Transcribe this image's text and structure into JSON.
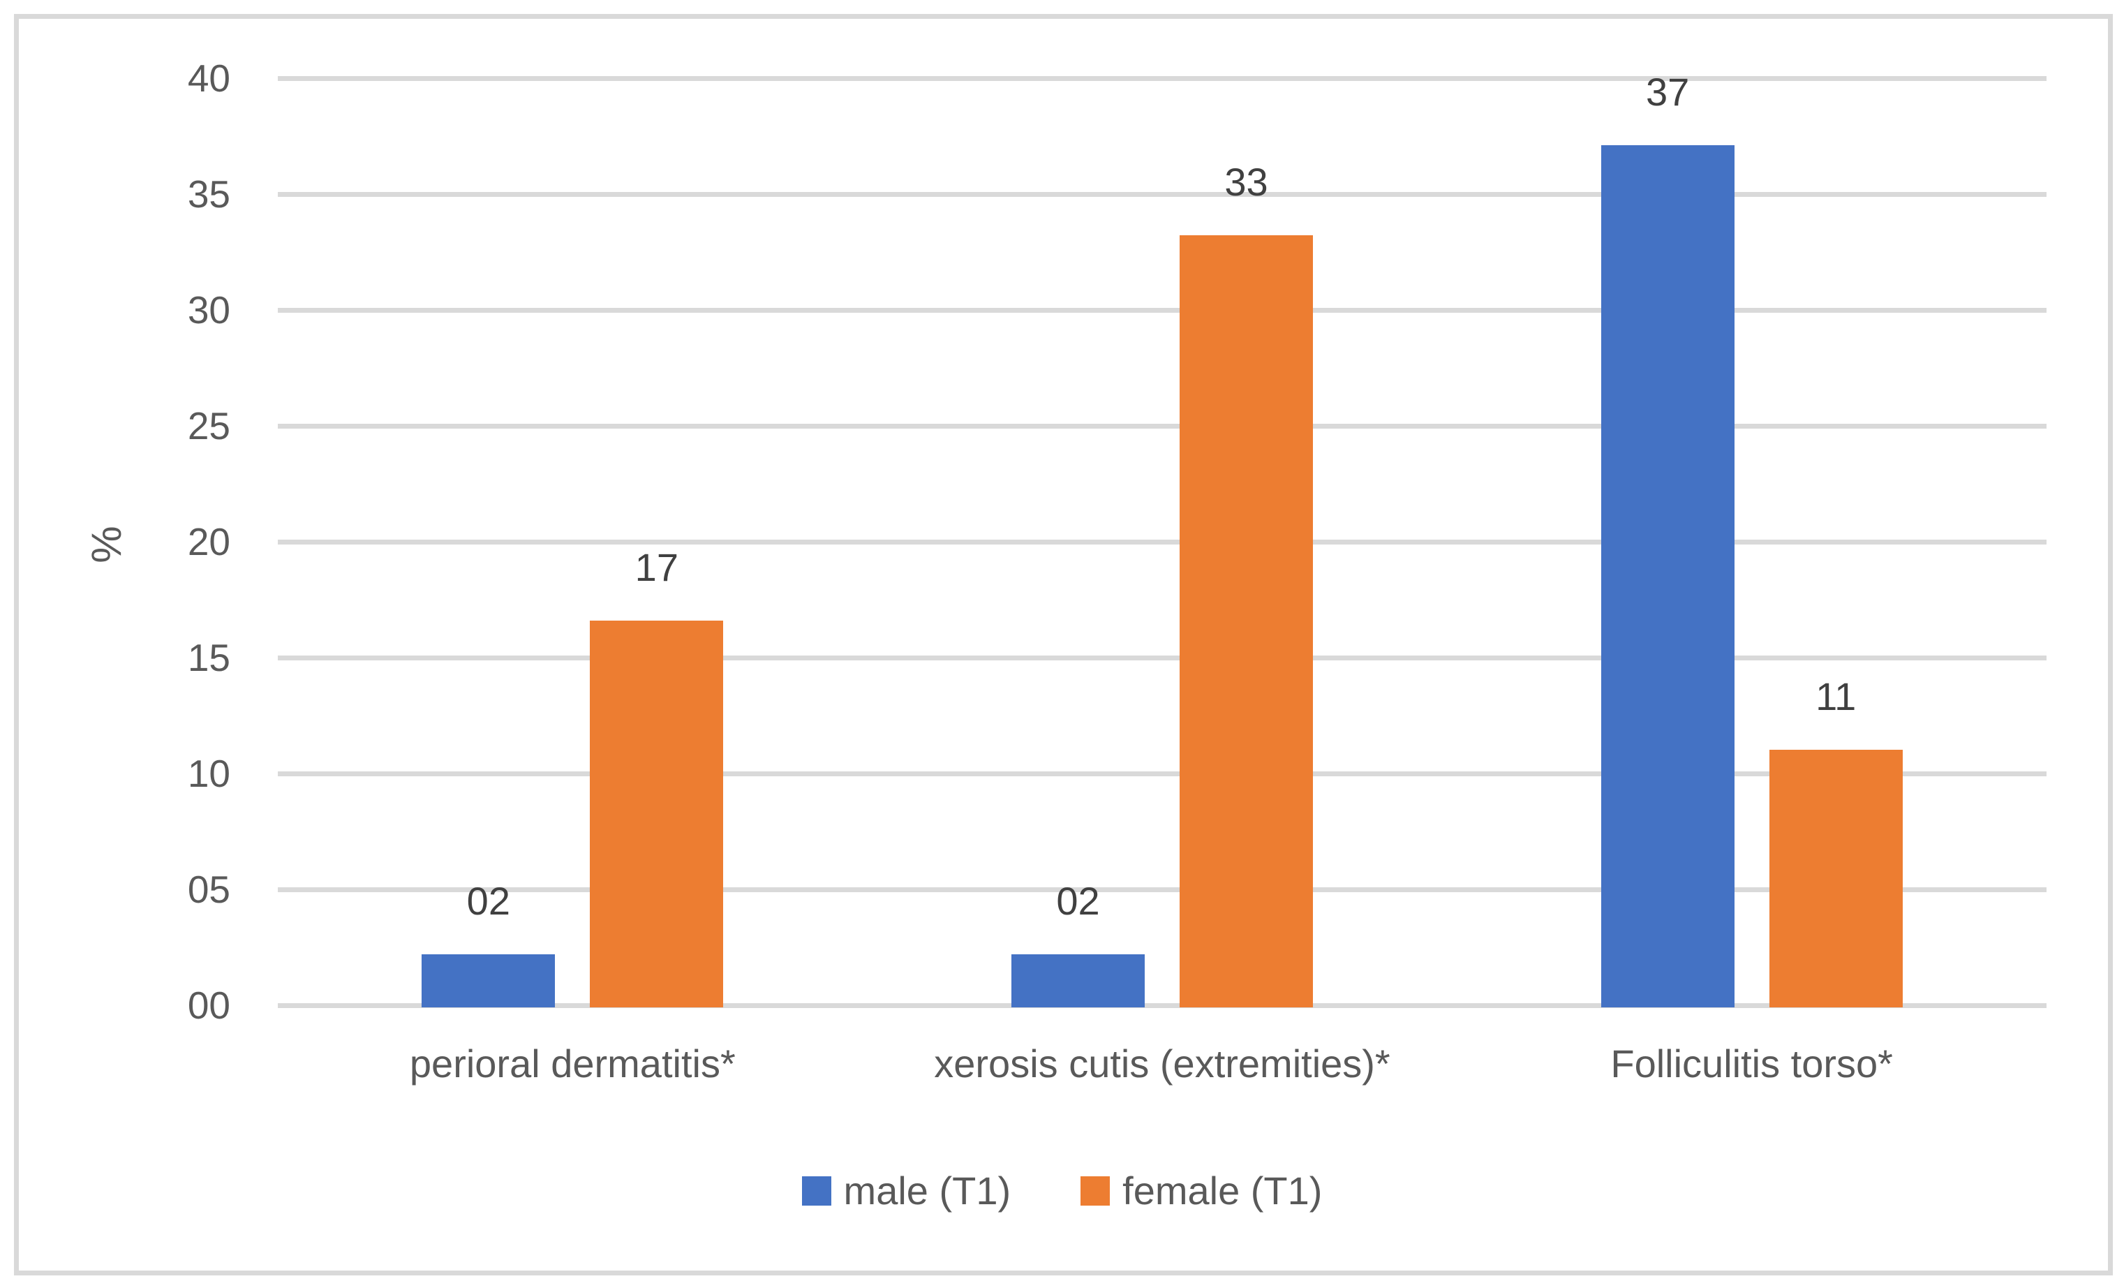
{
  "chart_data": {
    "type": "bar",
    "title": "",
    "categories": [
      "perioral dermatitis*",
      "xerosis cutis (extremities)*",
      "Folliculitis torso*"
    ],
    "series": [
      {
        "name": "male (T1)",
        "color": "#4472C4",
        "values": [
          2.3,
          2.3,
          37.2
        ],
        "labels": [
          "02",
          "02",
          "37"
        ]
      },
      {
        "name": "female (T1)",
        "color": "#ED7D31",
        "values": [
          16.7,
          33.3,
          11.1
        ],
        "labels": [
          "17",
          "33",
          "11"
        ]
      }
    ],
    "xlabel": "",
    "ylabel": "%",
    "ylim": [
      0,
      40
    ],
    "ytick_step": 5,
    "ytick_labels": [
      "00",
      "05",
      "10",
      "15",
      "20",
      "25",
      "30",
      "35",
      "40"
    ],
    "grid": true,
    "legend_position": "bottom"
  },
  "colors": {
    "gridline": "#D9D9D9",
    "frame_border": "#D9D9D9",
    "axis_text": "#595959",
    "data_label_text": "#404040",
    "background": "#FFFFFF"
  }
}
